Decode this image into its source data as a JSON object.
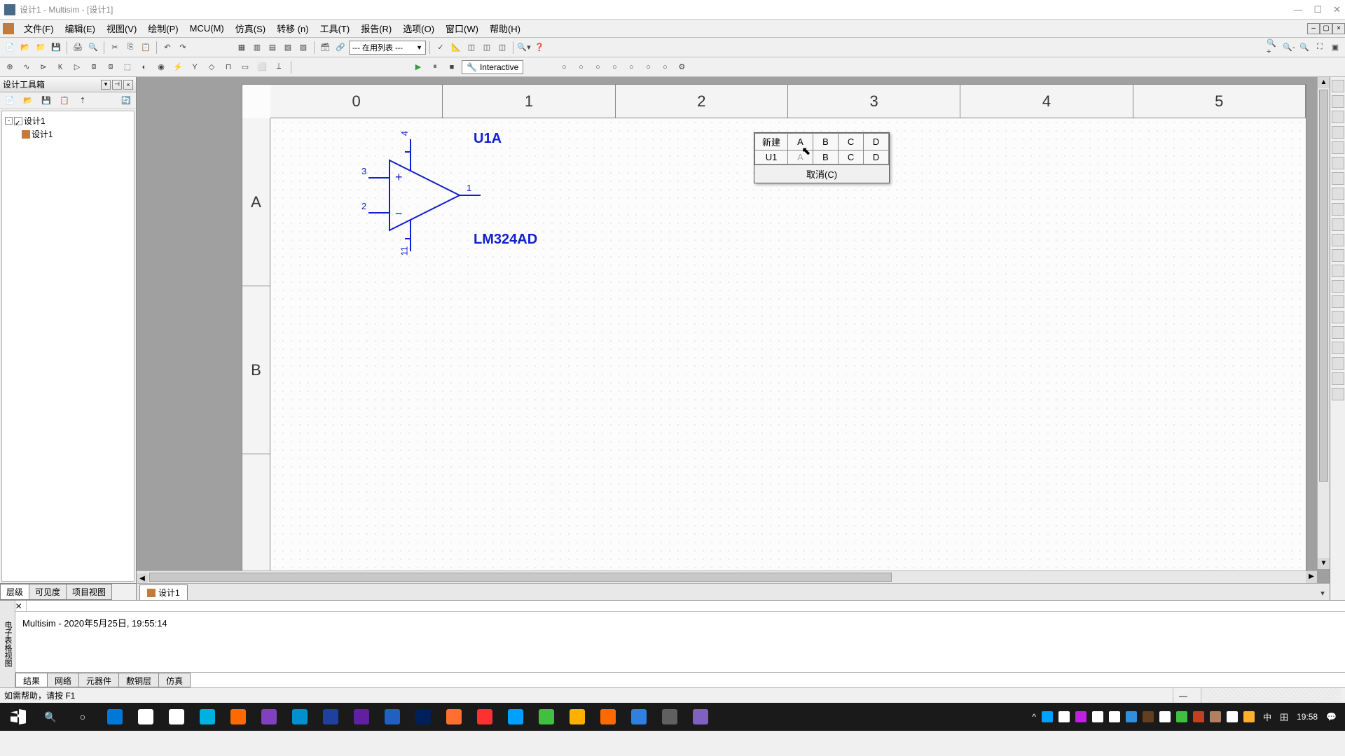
{
  "titlebar": {
    "title": "设计1 - Multisim - [设计1]"
  },
  "menubar": {
    "items": [
      "文件(F)",
      "编辑(E)",
      "视图(V)",
      "绘制(P)",
      "MCU(M)",
      "仿真(S)",
      "转移 (n)",
      "工具(T)",
      "报告(R)",
      "选项(O)",
      "窗口(W)",
      "帮助(H)"
    ]
  },
  "toolbar": {
    "combo": "--- 在用列表 ---",
    "interactive_label": "Interactive"
  },
  "sidebar": {
    "title": "设计工具箱",
    "tree_root": "设计1",
    "tree_child": "设计1",
    "tabs": [
      "层级",
      "可见度",
      "项目视图"
    ]
  },
  "ruler_h": [
    "0",
    "1",
    "2",
    "3",
    "4",
    "5"
  ],
  "ruler_v": [
    "A",
    "B"
  ],
  "component": {
    "ref": "U1A",
    "model": "LM324AD",
    "pins": {
      "p1": "1",
      "p2": "2",
      "p3": "3",
      "p4": "4",
      "p11": "11"
    }
  },
  "popup": {
    "new_label": "新建",
    "ref_label": "U1",
    "row1": [
      "A",
      "B",
      "C",
      "D"
    ],
    "row2": [
      "A",
      "B",
      "C",
      "D"
    ],
    "cancel": "取消(C)"
  },
  "doc_tab": "设计1",
  "output": {
    "side_label": "电子表格视图",
    "text": "Multisim  -  2020年5月25日, 19:55:14",
    "tabs": [
      "结果",
      "网络",
      "元器件",
      "敷铜层",
      "仿真"
    ]
  },
  "statusbar": {
    "help": "如需帮助，请按 F1"
  },
  "taskbar": {
    "ime": "中",
    "grid": "田",
    "time": "19:58",
    "icon_colors": [
      "#0078d7",
      "#ffffff",
      "#ffffff",
      "#00b0e0",
      "#ff6a00",
      "#8040c0",
      "#0090d0",
      "#2040a0",
      "#6020a0",
      "#2060c0",
      "#00205b",
      "#ff7030",
      "#ff3030",
      "#00a0ff",
      "#40c040",
      "#ffb000",
      "#ff6a00",
      "#3080e0",
      "#606060",
      "#8060c0"
    ],
    "tray_colors": [
      "#00a0ff",
      "#ffffff",
      "#c020e0",
      "#ffffff",
      "#ffffff",
      "#3090e0",
      "#604020",
      "#ffffff",
      "#40c040",
      "#c04020",
      "#b08060",
      "#ffffff",
      "#ffb030"
    ]
  }
}
